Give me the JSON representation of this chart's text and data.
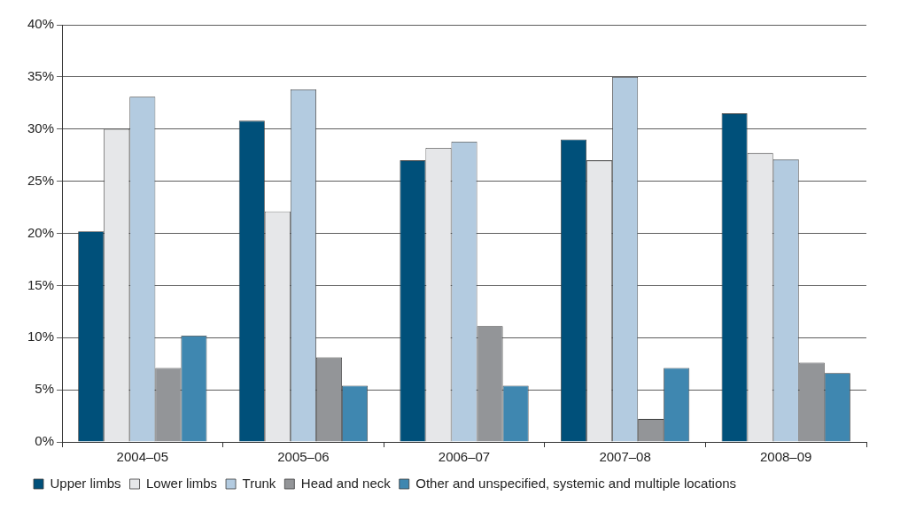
{
  "chart_data": {
    "type": "bar",
    "categories": [
      "2004–05",
      "2005–06",
      "2006–07",
      "2007–08",
      "2008–09"
    ],
    "series": [
      {
        "name": "Upper limbs",
        "color": "#00507a",
        "values": [
          20.2,
          30.8,
          27,
          29,
          31.5
        ]
      },
      {
        "name": "Lower limbs",
        "color": "#e6e7e9",
        "values": [
          30,
          22.1,
          28.2,
          27,
          27.7
        ]
      },
      {
        "name": "Trunk",
        "color": "#b3cbe0",
        "values": [
          33.1,
          33.8,
          28.8,
          35,
          27.1
        ]
      },
      {
        "name": "Head and neck",
        "color": "#939598",
        "values": [
          7.1,
          8.1,
          11.1,
          2.2,
          7.6
        ]
      },
      {
        "name": "Other and unspecified, systemic and multiple locations",
        "color": "#3f87b0",
        "values": [
          10.2,
          5.4,
          5.4,
          7.1,
          6.6
        ]
      }
    ],
    "ylim": [
      0,
      40
    ],
    "yticks": [
      {
        "value": 0,
        "label": "0%"
      },
      {
        "value": 5,
        "label": "5%"
      },
      {
        "value": 10,
        "label": "10%"
      },
      {
        "value": 15,
        "label": "15%"
      },
      {
        "value": 20,
        "label": "20%"
      },
      {
        "value": 25,
        "label": "25%"
      },
      {
        "value": 30,
        "label": "30%"
      },
      {
        "value": 35,
        "label": "35%"
      },
      {
        "value": 40,
        "label": "40%"
      }
    ],
    "grid": "y",
    "legend": "bottom left"
  }
}
